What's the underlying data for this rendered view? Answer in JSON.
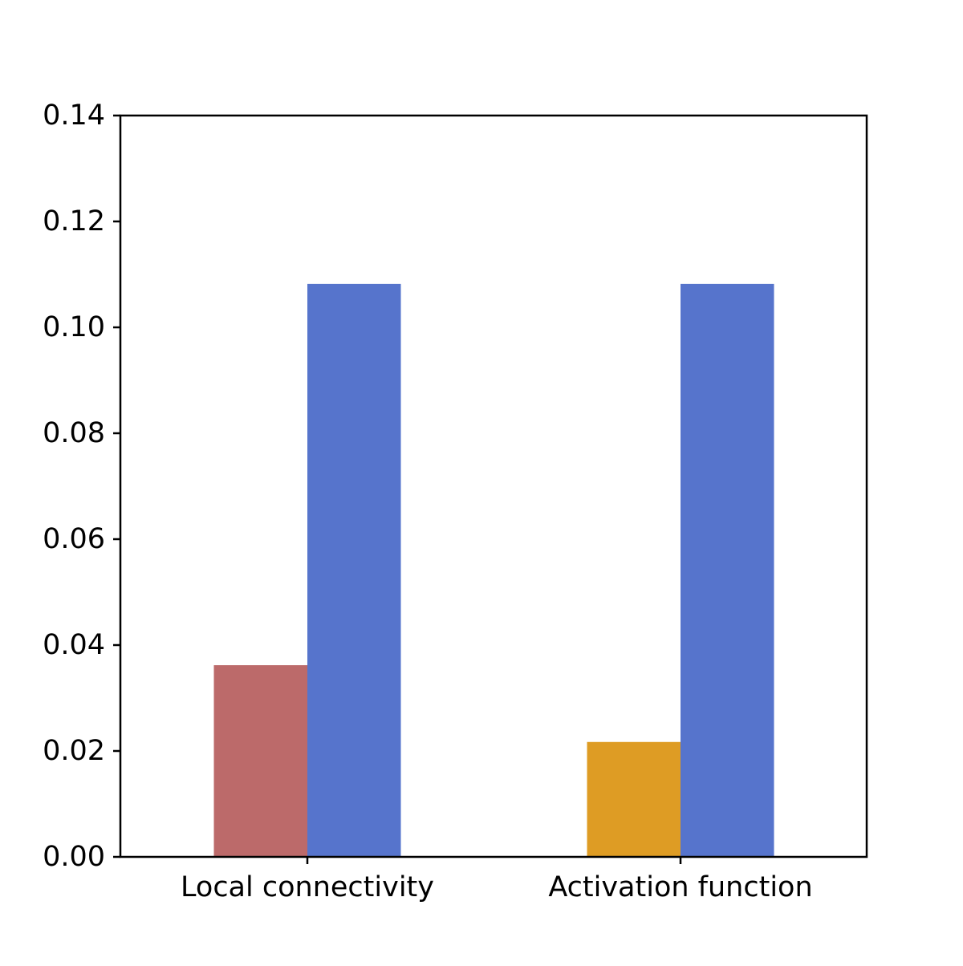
{
  "chart_data": {
    "type": "bar",
    "title": "",
    "xlabel": "",
    "ylabel": "",
    "categories": [
      "Local connectivity",
      "Activation function"
    ],
    "ylim": [
      0,
      0.14
    ],
    "yticks": [
      "0.00",
      "0.02",
      "0.04",
      "0.06",
      "0.08",
      "0.10",
      "0.12",
      "0.14"
    ],
    "grid": false,
    "legend": null,
    "bars": [
      {
        "category": "Local connectivity",
        "group": 0,
        "value": 0.0362,
        "color": "#bc6a6a"
      },
      {
        "category": "Local connectivity",
        "group": 1,
        "value": 0.1082,
        "color": "#5674cc"
      },
      {
        "category": "Activation function",
        "group": 0,
        "value": 0.0217,
        "color": "#de9c24"
      },
      {
        "category": "Activation function",
        "group": 1,
        "value": 0.1082,
        "color": "#5674cc"
      }
    ]
  }
}
